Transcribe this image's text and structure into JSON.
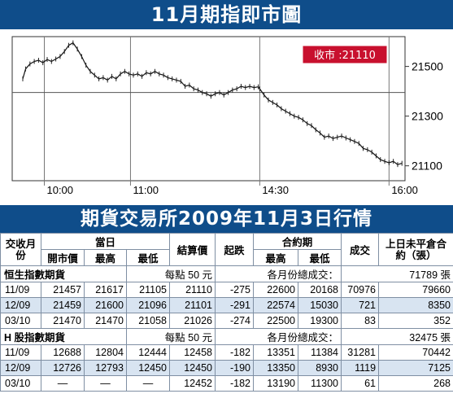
{
  "chart_title": "11月期指即市圖",
  "table_title": "期貨交易所2009年11月3日行情",
  "chart_data": {
    "type": "line",
    "title": "11月期指即市圖",
    "x_ticks": [
      "10:00",
      "11:00",
      "14:30",
      "16:00"
    ],
    "y_ticks": [
      21500,
      21300,
      21100
    ],
    "ylim": [
      21040,
      21620
    ],
    "reference_level": 21395,
    "close_label": "收市 :21110",
    "points": [
      [
        "09:45",
        21450
      ],
      [
        "09:47",
        21490
      ],
      [
        "09:50",
        21510
      ],
      [
        "09:53",
        21520
      ],
      [
        "09:56",
        21525
      ],
      [
        "09:59",
        21515
      ],
      [
        "10:02",
        21528
      ],
      [
        "10:05",
        21520
      ],
      [
        "10:08",
        21530
      ],
      [
        "10:11",
        21540
      ],
      [
        "10:14",
        21560
      ],
      [
        "10:17",
        21585
      ],
      [
        "10:20",
        21595
      ],
      [
        "10:23",
        21570
      ],
      [
        "10:26",
        21540
      ],
      [
        "10:29",
        21505
      ],
      [
        "10:32",
        21480
      ],
      [
        "10:35",
        21465
      ],
      [
        "10:38",
        21450
      ],
      [
        "10:41",
        21455
      ],
      [
        "10:44",
        21445
      ],
      [
        "10:47",
        21460
      ],
      [
        "10:50",
        21450
      ],
      [
        "10:53",
        21470
      ],
      [
        "10:56",
        21480
      ],
      [
        "10:59",
        21470
      ],
      [
        "11:02",
        21465
      ],
      [
        "11:05",
        21470
      ],
      [
        "11:08",
        21460
      ],
      [
        "11:11",
        21475
      ],
      [
        "11:14",
        21470
      ],
      [
        "11:17",
        21480
      ],
      [
        "11:20",
        21470
      ],
      [
        "11:23",
        21465
      ],
      [
        "11:26",
        21455
      ],
      [
        "11:29",
        21450
      ],
      [
        "11:32",
        21445
      ],
      [
        "11:35",
        21440
      ],
      [
        "11:38",
        21420
      ],
      [
        "11:41",
        21425
      ],
      [
        "11:44",
        21410
      ],
      [
        "11:47",
        21405
      ],
      [
        "11:50",
        21395
      ],
      [
        "11:53",
        21390
      ],
      [
        "11:56",
        21380
      ],
      [
        "11:59",
        21390
      ],
      [
        "12:02",
        21395
      ],
      [
        "12:05",
        21385
      ],
      [
        "12:08",
        21395
      ],
      [
        "12:11",
        21405
      ],
      [
        "12:14",
        21410
      ],
      [
        "12:17",
        21420
      ],
      [
        "12:20",
        21415
      ],
      [
        "12:23",
        21420
      ],
      [
        "12:26",
        21415
      ],
      [
        "12:29",
        21418
      ],
      [
        "14:30",
        21410
      ],
      [
        "14:33",
        21385
      ],
      [
        "14:36",
        21365
      ],
      [
        "14:39",
        21355
      ],
      [
        "14:42",
        21345
      ],
      [
        "14:45",
        21330
      ],
      [
        "14:48",
        21320
      ],
      [
        "14:51",
        21310
      ],
      [
        "14:54",
        21300
      ],
      [
        "14:57",
        21295
      ],
      [
        "15:00",
        21285
      ],
      [
        "15:03",
        21270
      ],
      [
        "15:06",
        21262
      ],
      [
        "15:09",
        21245
      ],
      [
        "15:12",
        21232
      ],
      [
        "15:15",
        21215
      ],
      [
        "15:18",
        21220
      ],
      [
        "15:21",
        21210
      ],
      [
        "15:24",
        21215
      ],
      [
        "15:27",
        21220
      ],
      [
        "15:30",
        21212
      ],
      [
        "15:33",
        21205
      ],
      [
        "15:36",
        21198
      ],
      [
        "15:39",
        21190
      ],
      [
        "15:42",
        21170
      ],
      [
        "15:45",
        21165
      ],
      [
        "15:48",
        21155
      ],
      [
        "15:51",
        21140
      ],
      [
        "15:54",
        21125
      ],
      [
        "15:57",
        21118
      ],
      [
        "16:00",
        21112
      ],
      [
        "16:03",
        21118
      ],
      [
        "16:06",
        21105
      ],
      [
        "16:09",
        21110
      ]
    ]
  },
  "header": {
    "contract": "交收月份",
    "day": "當日",
    "open": "開市價",
    "high": "最高",
    "low": "最低",
    "settle": "結算價",
    "change": "起跌",
    "contract_period": "合約期",
    "cp_high": "最高",
    "cp_low": "最低",
    "volume": "成交",
    "oi": "上日未平倉合約（張）"
  },
  "sections": [
    {
      "name": "恒生指數期貨",
      "unit": "每點 50 元",
      "total_label": "各月份總成交：",
      "total": "71789 張",
      "rows": [
        [
          "11/09",
          "21457",
          "21617",
          "21105",
          "21110",
          "-275",
          "22600",
          "20168",
          "70976",
          "79660"
        ],
        [
          "12/09",
          "21459",
          "21600",
          "21096",
          "21101",
          "-291",
          "22574",
          "15030",
          "721",
          "8350"
        ],
        [
          "03/10",
          "21470",
          "21470",
          "21058",
          "21026",
          "-274",
          "22500",
          "19300",
          "83",
          "352"
        ]
      ]
    },
    {
      "name": "H 股指數期貨",
      "unit": "每點 50 元",
      "total_label": "各月份總成交：",
      "total": "32475 張",
      "rows": [
        [
          "11/09",
          "12688",
          "12804",
          "12444",
          "12458",
          "-182",
          "13351",
          "11384",
          "31281",
          "70442"
        ],
        [
          "12/09",
          "12726",
          "12793",
          "12450",
          "12450",
          "-190",
          "13350",
          "8930",
          "1119",
          "7125"
        ],
        [
          "03/10",
          "—",
          "—",
          "—",
          "12452",
          "-182",
          "13190",
          "11300",
          "61",
          "268"
        ]
      ]
    }
  ],
  "colors": {
    "banner": "#0f4d8a",
    "row_shade": "#d8e4f1",
    "close_box": "#c8102e",
    "grid": "#555555"
  }
}
